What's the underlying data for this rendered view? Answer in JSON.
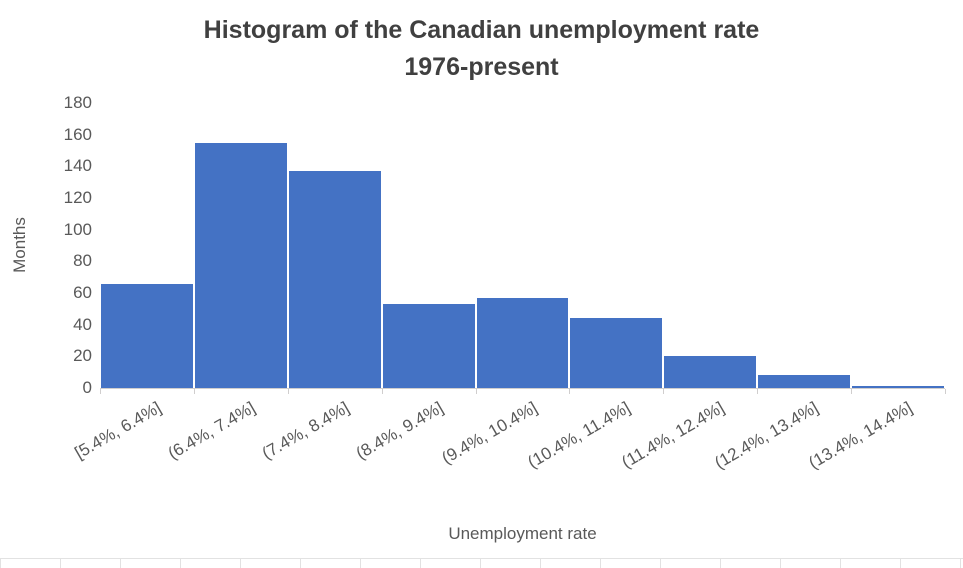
{
  "chart": {
    "title_line1": "Histogram of the Canadian unemployment rate",
    "title_line2": "1976-present",
    "xlabel": "Unemployment rate",
    "ylabel": "Months"
  },
  "chart_data": {
    "type": "bar",
    "title": "Histogram of the Canadian unemployment rate 1976-present",
    "xlabel": "Unemployment rate",
    "ylabel": "Months",
    "categories": [
      "[5.4%, 6.4%]",
      "(6.4%, 7.4%]",
      "(7.4%, 8.4%]",
      "(8.4%, 9.4%]",
      "(9.4%, 10.4%]",
      "(10.4%, 11.4%]",
      "(11.4%, 12.4%]",
      "(12.4%, 13.4%]",
      "(13.4%, 14.4%]"
    ],
    "values": [
      66,
      155,
      137,
      53,
      57,
      44,
      20,
      8,
      1
    ],
    "ylim": [
      0,
      180
    ],
    "yticks": [
      0,
      20,
      40,
      60,
      80,
      100,
      120,
      140,
      160,
      180
    ],
    "bar_color": "#4472C4",
    "grid": false,
    "legend": "none"
  },
  "colors": {
    "bar": "#4472C4",
    "axis_line": "#D0CECE",
    "label_text": "#595959",
    "title_text": "#404040"
  }
}
